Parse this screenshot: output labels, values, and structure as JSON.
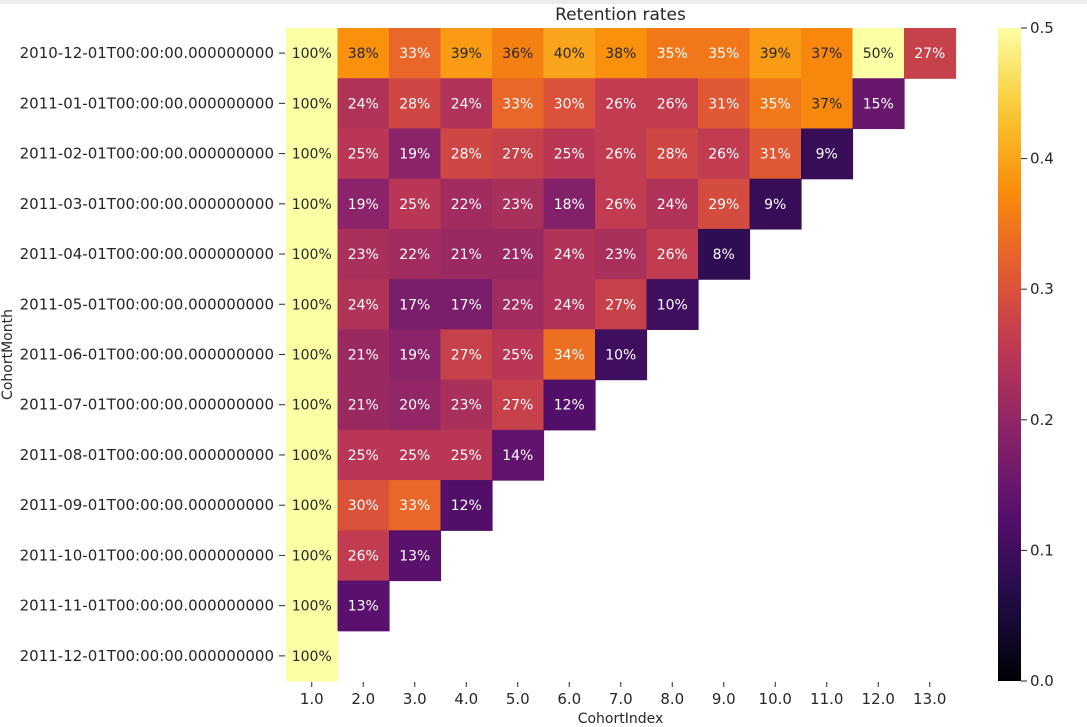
{
  "chart_data": {
    "type": "heatmap",
    "title": "Retention rates",
    "xlabel": "CohortIndex",
    "ylabel": "CohortMonth",
    "x_categories": [
      "1.0",
      "2.0",
      "3.0",
      "4.0",
      "5.0",
      "6.0",
      "7.0",
      "8.0",
      "9.0",
      "10.0",
      "11.0",
      "12.0",
      "13.0"
    ],
    "y_categories": [
      "2010-12-01T00:00:00.000000000",
      "2011-01-01T00:00:00.000000000",
      "2011-02-01T00:00:00.000000000",
      "2011-03-01T00:00:00.000000000",
      "2011-04-01T00:00:00.000000000",
      "2011-05-01T00:00:00.000000000",
      "2011-06-01T00:00:00.000000000",
      "2011-07-01T00:00:00.000000000",
      "2011-08-01T00:00:00.000000000",
      "2011-09-01T00:00:00.000000000",
      "2011-10-01T00:00:00.000000000",
      "2011-11-01T00:00:00.000000000",
      "2011-12-01T00:00:00.000000000"
    ],
    "values": [
      [
        1.0,
        0.38,
        0.33,
        0.39,
        0.36,
        0.4,
        0.38,
        0.35,
        0.35,
        0.39,
        0.37,
        0.5,
        0.27
      ],
      [
        1.0,
        0.24,
        0.28,
        0.24,
        0.33,
        0.3,
        0.26,
        0.26,
        0.31,
        0.35,
        0.37,
        0.15,
        null
      ],
      [
        1.0,
        0.25,
        0.19,
        0.28,
        0.27,
        0.25,
        0.26,
        0.28,
        0.26,
        0.31,
        0.09,
        null,
        null
      ],
      [
        1.0,
        0.19,
        0.25,
        0.22,
        0.23,
        0.18,
        0.26,
        0.24,
        0.29,
        0.09,
        null,
        null,
        null
      ],
      [
        1.0,
        0.23,
        0.22,
        0.21,
        0.21,
        0.24,
        0.23,
        0.26,
        0.08,
        null,
        null,
        null,
        null
      ],
      [
        1.0,
        0.24,
        0.17,
        0.17,
        0.22,
        0.24,
        0.27,
        0.1,
        null,
        null,
        null,
        null,
        null
      ],
      [
        1.0,
        0.21,
        0.19,
        0.27,
        0.25,
        0.34,
        0.1,
        null,
        null,
        null,
        null,
        null,
        null
      ],
      [
        1.0,
        0.21,
        0.2,
        0.23,
        0.27,
        0.12,
        null,
        null,
        null,
        null,
        null,
        null,
        null
      ],
      [
        1.0,
        0.25,
        0.25,
        0.25,
        0.14,
        null,
        null,
        null,
        null,
        null,
        null,
        null,
        null
      ],
      [
        1.0,
        0.3,
        0.33,
        0.12,
        null,
        null,
        null,
        null,
        null,
        null,
        null,
        null,
        null
      ],
      [
        1.0,
        0.26,
        0.13,
        null,
        null,
        null,
        null,
        null,
        null,
        null,
        null,
        null,
        null
      ],
      [
        1.0,
        0.13,
        null,
        null,
        null,
        null,
        null,
        null,
        null,
        null,
        null,
        null,
        null
      ],
      [
        1.0,
        null,
        null,
        null,
        null,
        null,
        null,
        null,
        null,
        null,
        null,
        null,
        null
      ]
    ],
    "cell_labels": [
      [
        "100%",
        "38%",
        "33%",
        "39%",
        "36%",
        "40%",
        "38%",
        "35%",
        "35%",
        "39%",
        "37%",
        "50%",
        "27%"
      ],
      [
        "100%",
        "24%",
        "28%",
        "24%",
        "33%",
        "30%",
        "26%",
        "26%",
        "31%",
        "35%",
        "37%",
        "15%",
        ""
      ],
      [
        "100%",
        "25%",
        "19%",
        "28%",
        "27%",
        "25%",
        "26%",
        "28%",
        "26%",
        "31%",
        "9%",
        "",
        ""
      ],
      [
        "100%",
        "19%",
        "25%",
        "22%",
        "23%",
        "18%",
        "26%",
        "24%",
        "29%",
        "9%",
        "",
        "",
        ""
      ],
      [
        "100%",
        "23%",
        "22%",
        "21%",
        "21%",
        "24%",
        "23%",
        "26%",
        "8%",
        "",
        "",
        "",
        ""
      ],
      [
        "100%",
        "24%",
        "17%",
        "17%",
        "22%",
        "24%",
        "27%",
        "10%",
        "",
        "",
        "",
        "",
        ""
      ],
      [
        "100%",
        "21%",
        "19%",
        "27%",
        "25%",
        "34%",
        "10%",
        "",
        "",
        "",
        "",
        "",
        ""
      ],
      [
        "100%",
        "21%",
        "20%",
        "23%",
        "27%",
        "12%",
        "",
        "",
        "",
        "",
        "",
        "",
        ""
      ],
      [
        "100%",
        "25%",
        "25%",
        "25%",
        "14%",
        "",
        "",
        "",
        "",
        "",
        "",
        "",
        ""
      ],
      [
        "100%",
        "30%",
        "33%",
        "12%",
        "",
        "",
        "",
        "",
        "",
        "",
        "",
        "",
        ""
      ],
      [
        "100%",
        "26%",
        "13%",
        "",
        "",
        "",
        "",
        "",
        "",
        "",
        "",
        "",
        ""
      ],
      [
        "100%",
        "13%",
        "",
        "",
        "",
        "",
        "",
        "",
        "",
        "",
        "",
        "",
        ""
      ],
      [
        "100%",
        "",
        "",
        "",
        "",
        "",
        "",
        "",
        "",
        "",
        "",
        "",
        ""
      ]
    ],
    "colormap": "inferno",
    "vmin": 0.0,
    "vmax": 0.5,
    "colorbar_ticks": [
      "0.0",
      "0.1",
      "0.2",
      "0.3",
      "0.4",
      "0.5"
    ],
    "colorbar_tick_values": [
      0.0,
      0.1,
      0.2,
      0.3,
      0.4,
      0.5
    ]
  }
}
